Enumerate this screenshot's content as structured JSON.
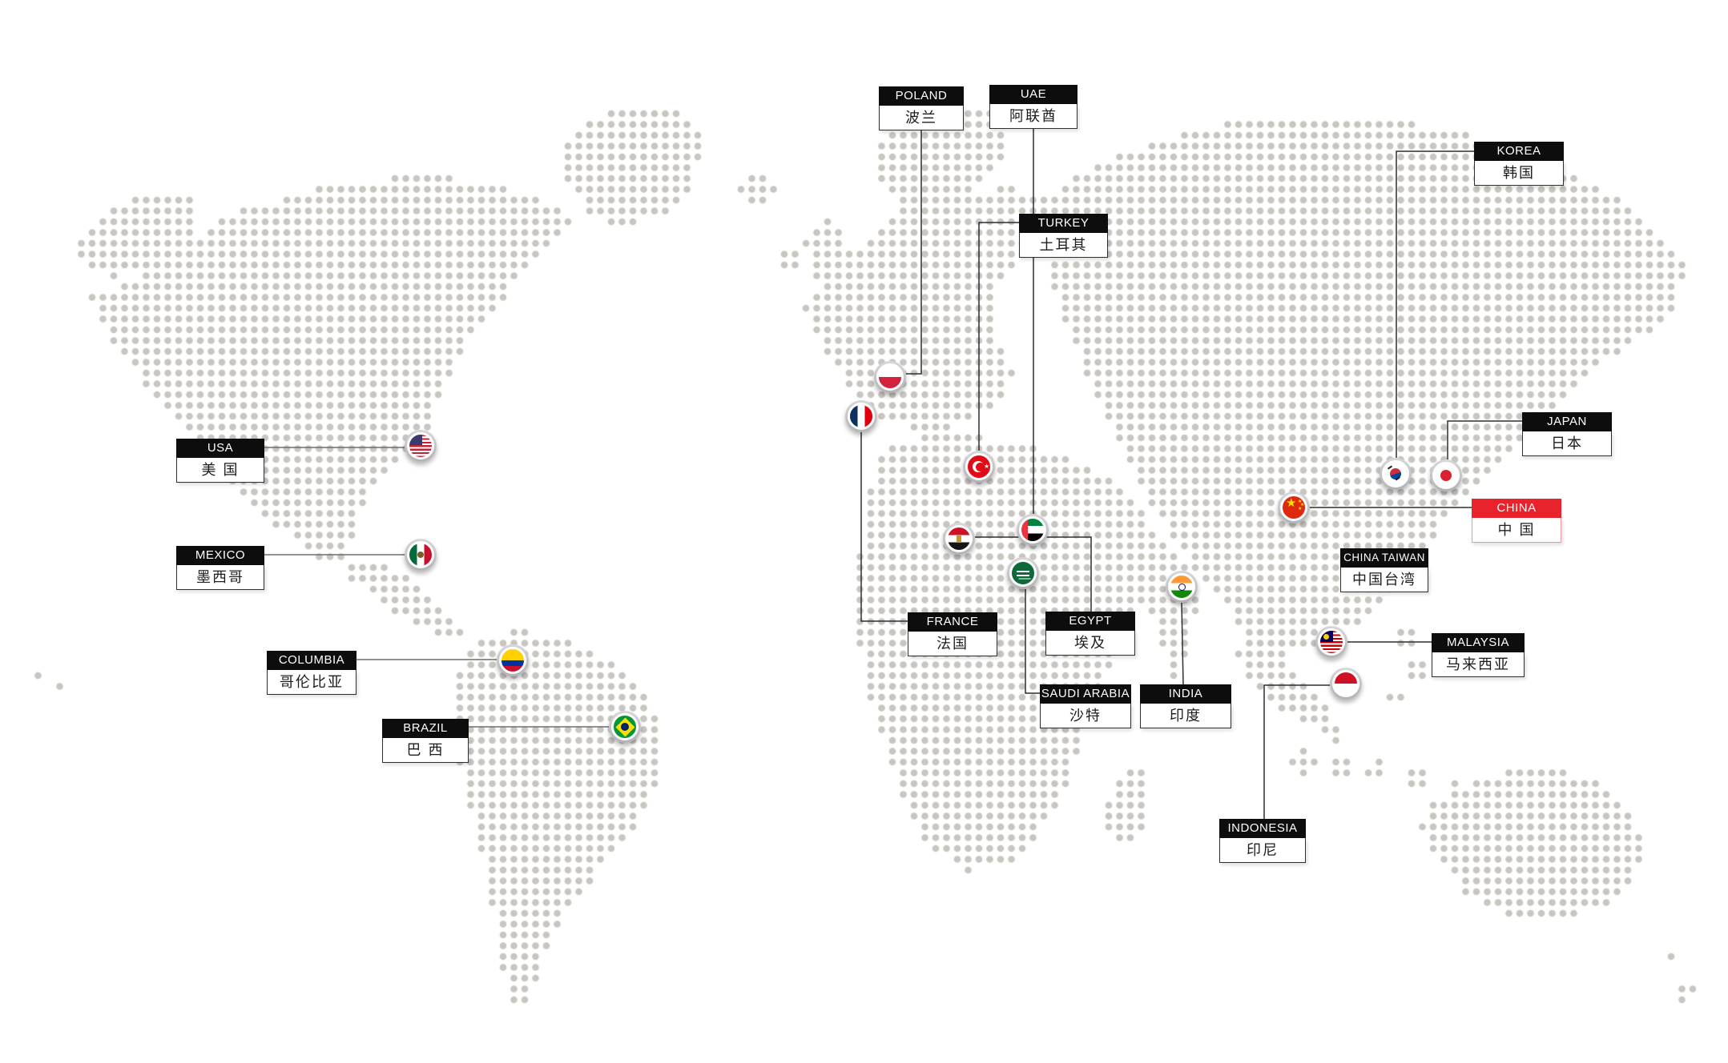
{
  "colors": {
    "background": "#ffffff",
    "map_dot": "#c9c5c0",
    "label_header_bg": "#0d0d0d",
    "label_header_text": "#ffffff",
    "label_body_text": "#1c1c1c",
    "china_accent": "#e8232b",
    "connector_gray": "#6e6e6e",
    "connector_dark": "#2f2f2f"
  },
  "countries": {
    "usa": {
      "en": "USA",
      "zh": "美 国"
    },
    "mexico": {
      "en": "MEXICO",
      "zh": "墨西哥"
    },
    "columbia": {
      "en": "COLUMBIA",
      "zh": "哥伦比亚"
    },
    "brazil": {
      "en": "BRAZIL",
      "zh": "巴 西"
    },
    "poland": {
      "en": "POLAND",
      "zh": "波兰"
    },
    "uae": {
      "en": "UAE",
      "zh": "阿联酋"
    },
    "turkey": {
      "en": "TURKEY",
      "zh": "土耳其"
    },
    "france": {
      "en": "FRANCE",
      "zh": "法国"
    },
    "egypt": {
      "en": "EGYPT",
      "zh": "埃及"
    },
    "saudi_arabia": {
      "en": "SAUDI ARABIA",
      "zh": "沙特"
    },
    "india": {
      "en": "INDIA",
      "zh": "印度"
    },
    "korea": {
      "en": "KOREA",
      "zh": "韩国"
    },
    "japan": {
      "en": "JAPAN",
      "zh": "日本"
    },
    "china": {
      "en": "CHINA",
      "zh": "中 国",
      "highlighted": true
    },
    "china_taiwan": {
      "en": "CHINA TAIWAN",
      "zh": "中国台湾"
    },
    "malaysia": {
      "en": "MALAYSIA",
      "zh": "马来西亚"
    },
    "indonesia": {
      "en": "INDONESIA",
      "zh": "印尼"
    }
  },
  "flag_markers": [
    "usa",
    "mexico",
    "columbia",
    "brazil",
    "poland",
    "france",
    "turkey",
    "egypt",
    "uae",
    "saudi_arabia",
    "india",
    "china",
    "korea",
    "japan",
    "malaysia",
    "indonesia"
  ]
}
